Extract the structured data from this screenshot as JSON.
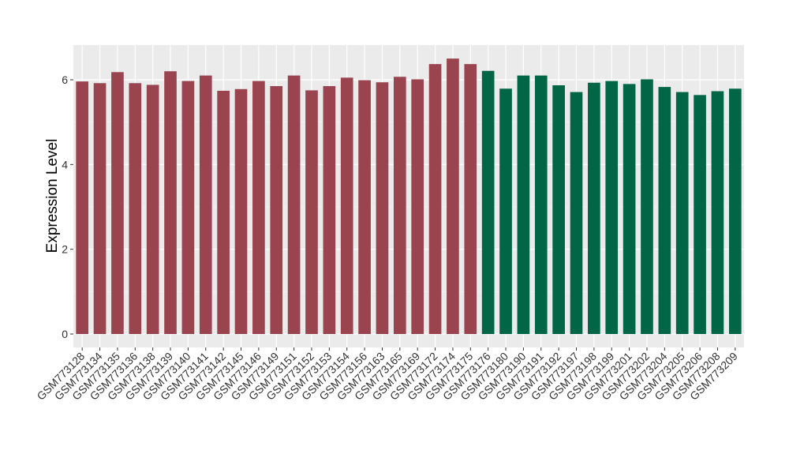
{
  "chart_data": {
    "type": "bar",
    "title": "",
    "xlabel": "",
    "ylabel": "Expression Level",
    "ylim": [
      0,
      6.8
    ],
    "yticks": [
      0,
      2,
      4,
      6
    ],
    "grid": true,
    "panel_background": "#ebebeb",
    "categories": [
      "GSM773128",
      "GSM773134",
      "GSM773135",
      "GSM773136",
      "GSM773138",
      "GSM773139",
      "GSM773140",
      "GSM773141",
      "GSM773142",
      "GSM773145",
      "GSM773146",
      "GSM773149",
      "GSM773151",
      "GSM773152",
      "GSM773153",
      "GSM773154",
      "GSM773156",
      "GSM773163",
      "GSM773165",
      "GSM773169",
      "GSM773172",
      "GSM773174",
      "GSM773175",
      "GSM773176",
      "GSM773180",
      "GSM773190",
      "GSM773191",
      "GSM773192",
      "GSM773197",
      "GSM773198",
      "GSM773199",
      "GSM773201",
      "GSM773202",
      "GSM773204",
      "GSM773205",
      "GSM773206",
      "GSM773208",
      "GSM773209"
    ],
    "values": [
      5.96,
      5.92,
      6.18,
      5.92,
      5.88,
      6.2,
      5.97,
      6.1,
      5.74,
      5.78,
      5.97,
      5.85,
      6.1,
      5.75,
      5.85,
      6.05,
      5.99,
      5.94,
      6.07,
      6.01,
      6.37,
      6.5,
      6.37,
      6.21,
      5.79,
      6.1,
      6.1,
      5.87,
      5.71,
      5.93,
      5.97,
      5.9,
      6.01,
      5.83,
      5.71,
      5.64,
      5.73,
      5.79
    ],
    "bar_colors": [
      "#99444f",
      "#99444f",
      "#99444f",
      "#99444f",
      "#99444f",
      "#99444f",
      "#99444f",
      "#99444f",
      "#99444f",
      "#99444f",
      "#99444f",
      "#99444f",
      "#99444f",
      "#99444f",
      "#99444f",
      "#99444f",
      "#99444f",
      "#99444f",
      "#99444f",
      "#99444f",
      "#99444f",
      "#99444f",
      "#99444f",
      "#006645",
      "#006645",
      "#006645",
      "#006645",
      "#006645",
      "#006645",
      "#006645",
      "#006645",
      "#006645",
      "#006645",
      "#006645",
      "#006645",
      "#006645",
      "#006645",
      "#006645"
    ]
  }
}
